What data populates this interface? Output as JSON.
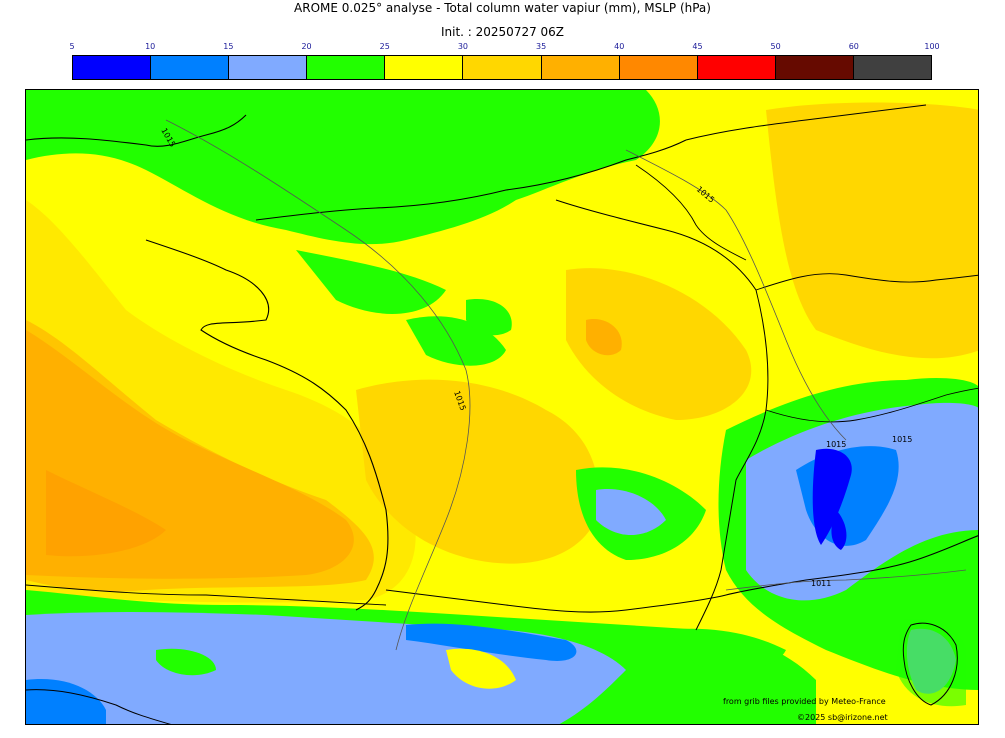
{
  "header": {
    "title": "AROME 0.025° analyse - Total column water vapiur (mm), MSLP (hPa)",
    "init": "Init. : 20250727 06Z"
  },
  "colorbar": {
    "ticks": [
      "5",
      "10",
      "15",
      "20",
      "25",
      "30",
      "35",
      "40",
      "45",
      "50",
      "60",
      "100"
    ],
    "colors": [
      "#0000ff",
      "#0080ff",
      "#80aaff",
      "#22ff00",
      "#ffff00",
      "#ffd700",
      "#ffb000",
      "#ff8800",
      "#ff0000",
      "#660a00",
      "#404040"
    ]
  },
  "map": {
    "region": "France and surroundings",
    "isobar_labels": [
      "1015",
      "1015",
      "1015",
      "1015",
      "1015",
      "1011"
    ]
  },
  "credits": {
    "source": "from grib files provided by Meteo-France",
    "copyright": "©2025 sb@irizone.net"
  }
}
